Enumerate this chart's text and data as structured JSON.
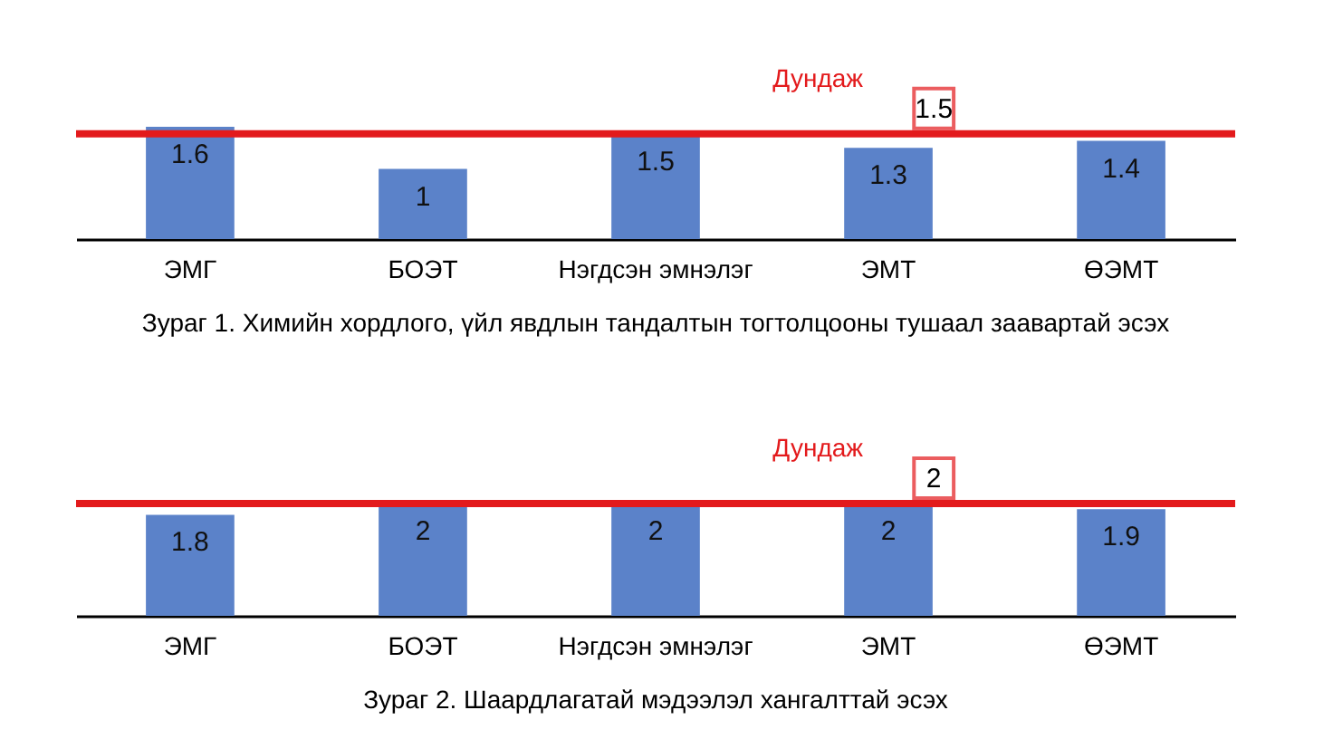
{
  "chart_data": [
    {
      "type": "bar",
      "title": "Зураг 1. Химийн хордлого, үйл явдлын  тандалтын тогтолцооны тушаал заавартай эсэх",
      "categories": [
        "ЭМГ",
        "БОЭТ",
        "Нэгдсэн эмнэлэг",
        "ЭМТ",
        "ӨЭМТ"
      ],
      "values": [
        1.6,
        1,
        1.5,
        1.3,
        1.4
      ],
      "color": "#5b82c9",
      "data_labels": true,
      "tick_labels": "x",
      "grid": false,
      "ref_lines": [
        {
          "axis": "y",
          "value": 1.5,
          "label": "Дундаж",
          "color": "#e31a1c"
        }
      ],
      "annotations": [
        {
          "text": "1.5",
          "y": 1.5
        }
      ]
    },
    {
      "type": "bar",
      "title": "Зураг 2. Шаардлагатай мэдээлэл хангалттай эсэх",
      "categories": [
        "ЭМГ",
        "БОЭТ",
        "Нэгдсэн эмнэлэг",
        "ЭМТ",
        "ӨЭМТ"
      ],
      "values": [
        1.8,
        2,
        2,
        2,
        1.9
      ],
      "color": "#5b82c9",
      "data_labels": true,
      "tick_labels": "x",
      "grid": false,
      "ref_lines": [
        {
          "axis": "y",
          "value": 2,
          "label": "Дундаж",
          "color": "#e31a1c"
        }
      ],
      "annotations": [
        {
          "text": "2",
          "y": 2
        }
      ]
    }
  ]
}
